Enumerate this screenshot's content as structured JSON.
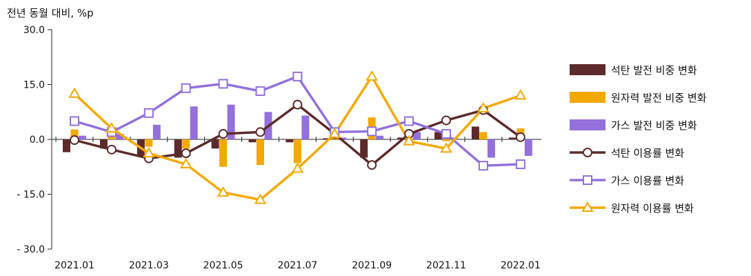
{
  "chart_data": {
    "type": "bar+line",
    "unit_label": "전년 동월 대비, %p",
    "x": [
      "2021.01",
      "2021.02",
      "2021.03",
      "2021.04",
      "2021.05",
      "2021.06",
      "2021.07",
      "2021.08",
      "2021.09",
      "2021.10",
      "2021.11",
      "2021.12",
      "2022.01"
    ],
    "x_tick_labels": [
      "2021.01",
      "2021.03",
      "2021.05",
      "2021.07",
      "2021.09",
      "2021.11",
      "2022.01"
    ],
    "y_tick_labels": [
      "30.0",
      "15.0",
      "0.0",
      "- 15.0",
      "- 30.0"
    ],
    "ylim": [
      -30,
      30
    ],
    "y_ticks": [
      30,
      15,
      0,
      -15,
      -30
    ],
    "grid": false,
    "legend_position": "right",
    "bar_series": [
      {
        "name": "석탄 발전 비중 변화",
        "color": "#5c2a2a",
        "values": [
          -3.5,
          -2.5,
          -4.5,
          -5.0,
          -2.5,
          -0.8,
          -0.8,
          0.3,
          -5.0,
          0.5,
          2.0,
          3.5,
          0.5
        ]
      },
      {
        "name": "원자력 발전 비중 변화",
        "color": "#f5a800",
        "values": [
          2.7,
          1.0,
          -2.0,
          -2.5,
          -7.5,
          -7.0,
          -6.5,
          0.5,
          6.0,
          -1.0,
          -0.5,
          2.0,
          3.0
        ]
      },
      {
        "name": "가스 발전 비중 변화",
        "color": "#9370db",
        "values": [
          1.0,
          1.5,
          4.0,
          9.0,
          9.5,
          7.5,
          6.5,
          0.5,
          1.0,
          2.0,
          0.5,
          -5.0,
          -4.5
        ]
      }
    ],
    "line_series": [
      {
        "name": "석탄 이용률 변화",
        "color": "#5c2a2a",
        "marker": "circle",
        "values": [
          -0.2,
          -2.8,
          -5.2,
          -3.8,
          1.5,
          2.0,
          9.5,
          1.5,
          -7.0,
          1.5,
          5.2,
          8.0,
          0.6
        ]
      },
      {
        "name": "가스 이용률 변화",
        "color": "#9370db",
        "marker": "square",
        "values": [
          5.0,
          2.0,
          7.2,
          14.0,
          15.2,
          13.2,
          17.2,
          2.0,
          2.2,
          5.0,
          1.5,
          -7.2,
          -6.8
        ]
      },
      {
        "name": "원자력 이용률 변화",
        "color": "#f5a800",
        "marker": "triangle",
        "values": [
          12.5,
          3.0,
          -3.8,
          -6.8,
          -14.5,
          -16.5,
          -8.0,
          1.5,
          17.2,
          -0.5,
          -2.5,
          8.5,
          12.0
        ]
      }
    ]
  }
}
